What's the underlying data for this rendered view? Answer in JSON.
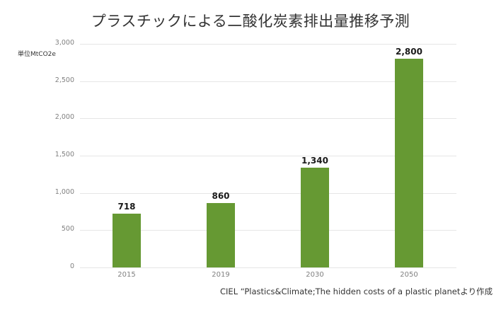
{
  "title": "プラスチックによる二酸化炭素排出量推移予測",
  "unit_label": "単位MtCO2e",
  "source": "CIEL “Plastics&Climate;The hidden costs of a plastic planetより作成",
  "colors": {
    "bar": "#669933",
    "grid": "#e6e6e6",
    "tick_text": "#808080"
  },
  "y_ticks": [
    "0",
    "500",
    "1,000",
    "1,500",
    "2,000",
    "2,500",
    "3,000"
  ],
  "bars": [
    {
      "year": "2015",
      "value": 718,
      "label": "718"
    },
    {
      "year": "2019",
      "value": 860,
      "label": "860"
    },
    {
      "year": "2030",
      "value": 1340,
      "label": "1,340"
    },
    {
      "year": "2050",
      "value": 2800,
      "label": "2,800"
    }
  ],
  "chart_data": {
    "type": "bar",
    "title": "プラスチックによる二酸化炭素排出量推移予測",
    "categories": [
      "2015",
      "2019",
      "2030",
      "2050"
    ],
    "values": [
      718,
      860,
      1340,
      2800
    ],
    "xlabel": "",
    "ylabel": "単位MtCO2e",
    "ylim": [
      0,
      3000
    ],
    "yticks": [
      0,
      500,
      1000,
      1500,
      2000,
      2500,
      3000
    ],
    "grid": true,
    "legend": null,
    "data_labels": [
      "718",
      "860",
      "1,340",
      "2,800"
    ],
    "annotations": [
      "CIEL “Plastics&Climate;The hidden costs of a plastic planetより作成"
    ]
  }
}
